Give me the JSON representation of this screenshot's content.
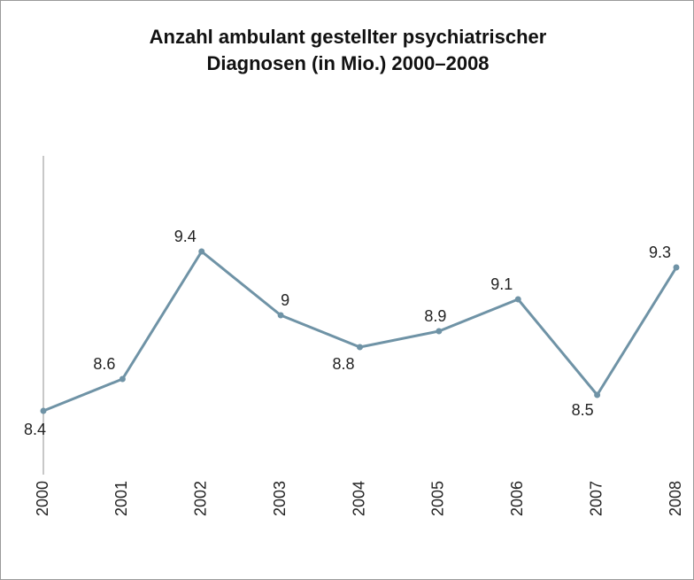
{
  "chart_data": {
    "type": "line",
    "title": "Anzahl ambulant gestellter psychiatrischer Diagnosen (in Mio.) 2000–2008",
    "categories": [
      "2000",
      "2001",
      "2002",
      "2003",
      "2004",
      "2005",
      "2006",
      "2007",
      "2008"
    ],
    "values": [
      8.4,
      8.6,
      9.4,
      9,
      8.8,
      8.9,
      9.1,
      8.5,
      9.3
    ],
    "color": "#6f93a6",
    "ylim": [
      8,
      10
    ]
  }
}
